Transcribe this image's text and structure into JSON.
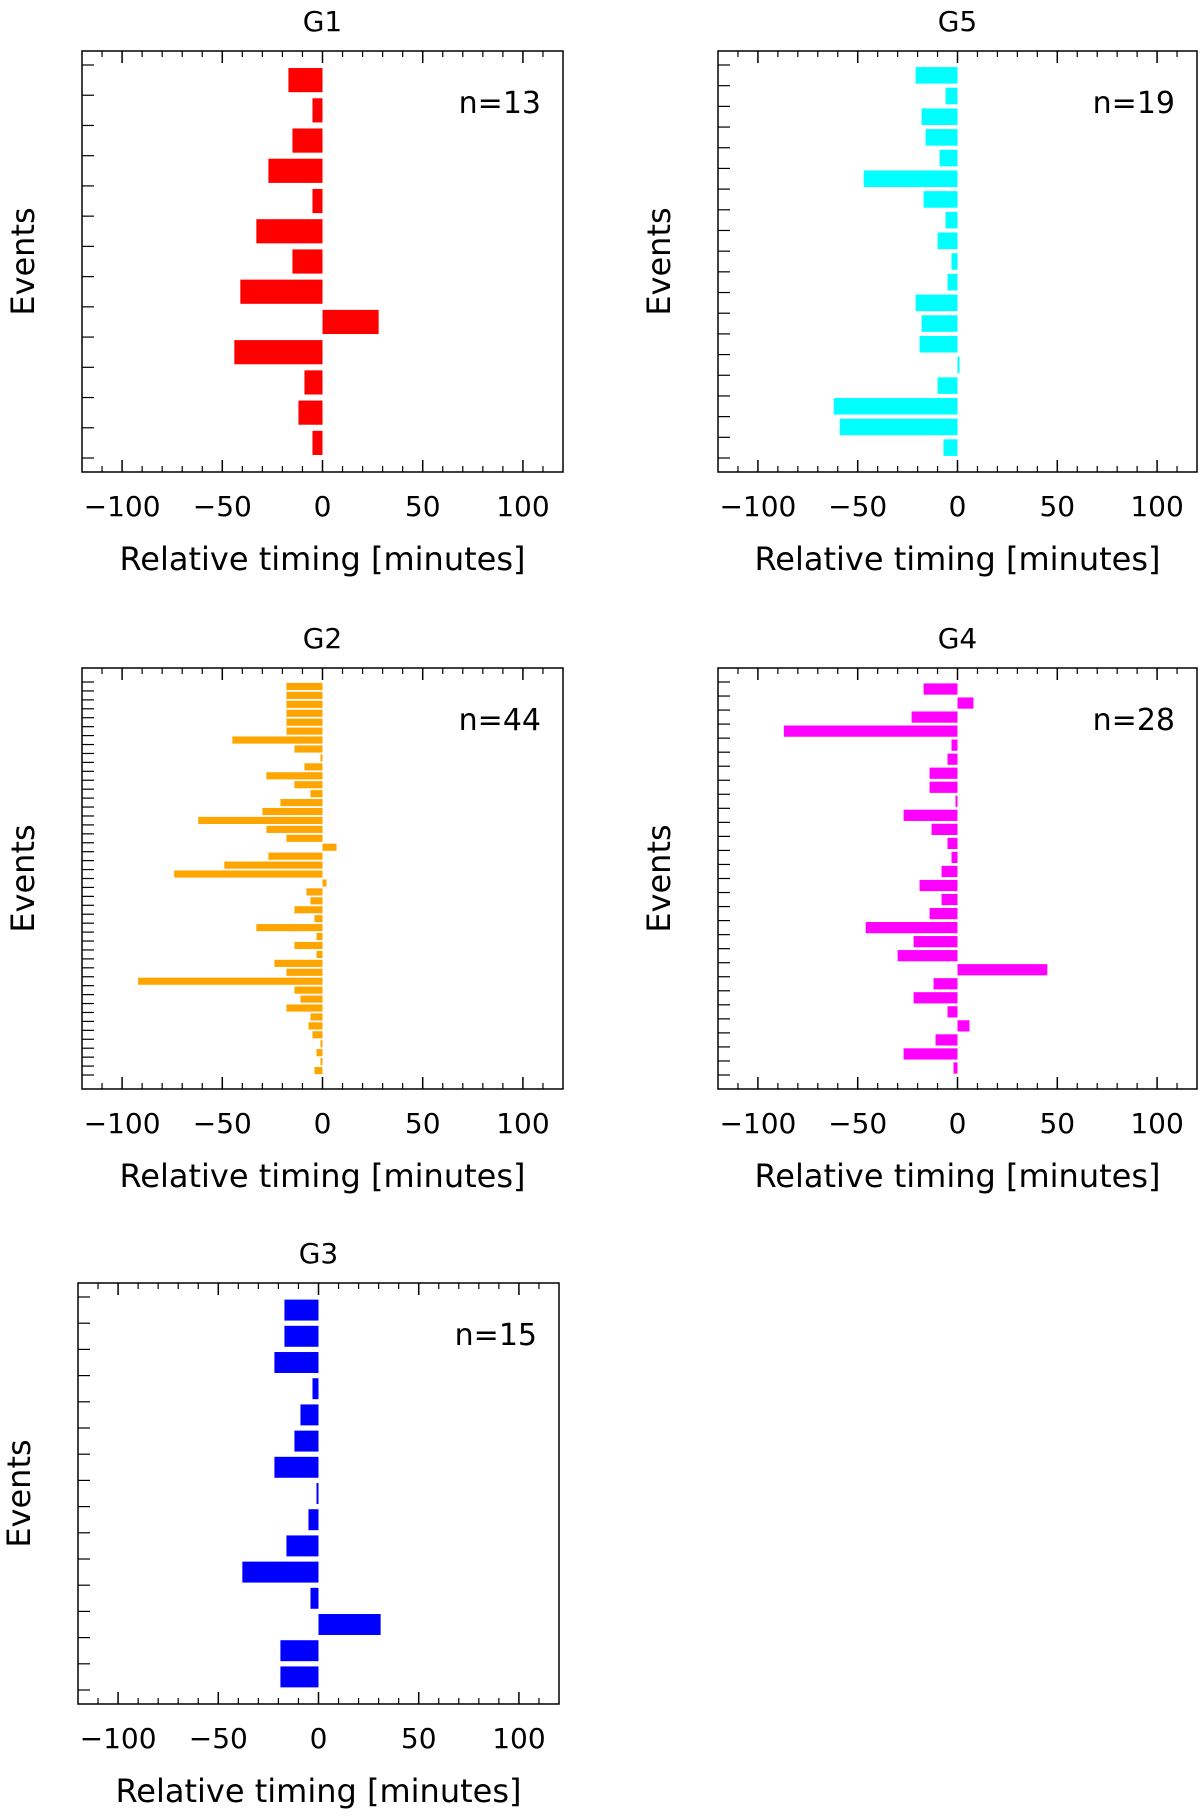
{
  "chart_data": [
    {
      "type": "bar",
      "orientation": "horizontal",
      "title": "G1",
      "annotation": "n=13",
      "xlabel": "Relative timing [minutes]",
      "ylabel": "Events",
      "xlim": [
        -120,
        120
      ],
      "xticks": [
        -100,
        -50,
        0,
        50,
        100
      ],
      "xtick_labels": [
        "−100",
        "−50",
        "0",
        "50",
        "100"
      ],
      "color": "#ff0000",
      "grid": false,
      "values": [
        -17,
        -5,
        -15,
        -27,
        -5,
        -33,
        -15,
        -41,
        28,
        -44,
        -9,
        -12,
        -5
      ]
    },
    {
      "type": "bar",
      "orientation": "horizontal",
      "title": "G5",
      "annotation": "n=19",
      "xlabel": "Relative timing [minutes]",
      "ylabel": "Events",
      "xlim": [
        -120,
        120
      ],
      "xticks": [
        -100,
        -50,
        0,
        50,
        100
      ],
      "xtick_labels": [
        "−100",
        "−50",
        "0",
        "50",
        "100"
      ],
      "color": "#00ffff",
      "grid": false,
      "values": [
        -21,
        -6,
        -18,
        -16,
        -9,
        -47,
        -17,
        -6,
        -10,
        -3,
        -5,
        -21,
        -18,
        -19,
        1,
        -10,
        -62,
        -59,
        -7
      ]
    },
    {
      "type": "bar",
      "orientation": "horizontal",
      "title": "G2",
      "annotation": "n=44",
      "xlabel": "Relative timing [minutes]",
      "ylabel": "Events",
      "xlim": [
        -120,
        120
      ],
      "xticks": [
        -100,
        -50,
        0,
        50,
        100
      ],
      "xtick_labels": [
        "−100",
        "−50",
        "0",
        "50",
        "100"
      ],
      "color": "#ffa500",
      "grid": false,
      "values": [
        -18,
        -18,
        -18,
        -18,
        -18,
        -18,
        -45,
        -14,
        -1,
        -9,
        -28,
        -14,
        -6,
        -21,
        -30,
        -62,
        -28,
        -18,
        7,
        -27,
        -49,
        -74,
        2,
        -8,
        -6,
        -14,
        -4,
        -33,
        -3,
        -14,
        -3,
        -24,
        -18,
        -92,
        -14,
        -11,
        -18,
        -6,
        -7,
        -5,
        -1,
        -3,
        -1,
        -4
      ]
    },
    {
      "type": "bar",
      "orientation": "horizontal",
      "title": "G4",
      "annotation": "n=28",
      "xlabel": "Relative timing [minutes]",
      "ylabel": "Events",
      "xlim": [
        -120,
        120
      ],
      "xticks": [
        -100,
        -50,
        0,
        50,
        100
      ],
      "xtick_labels": [
        "−100",
        "−50",
        "0",
        "50",
        "100"
      ],
      "color": "#ff00ff",
      "grid": false,
      "values": [
        -17,
        8,
        -23,
        -87,
        -3,
        -5,
        -14,
        -14,
        -1,
        -27,
        -13,
        -5,
        -3,
        -8,
        -19,
        -8,
        -14,
        -46,
        -22,
        -30,
        45,
        -12,
        -22,
        -5,
        6,
        -11,
        -27,
        -2
      ]
    },
    {
      "type": "bar",
      "orientation": "horizontal",
      "title": "G3",
      "annotation": "n=15",
      "xlabel": "Relative timing [minutes]",
      "ylabel": "Events",
      "xlim": [
        -120,
        120
      ],
      "xticks": [
        -100,
        -50,
        0,
        50,
        100
      ],
      "xtick_labels": [
        "−100",
        "−50",
        "0",
        "50",
        "100"
      ],
      "color": "#0000ff",
      "grid": false,
      "values": [
        -17,
        -17,
        -22,
        -3,
        -9,
        -12,
        -22,
        -1,
        -5,
        -16,
        -38,
        -4,
        31,
        -19,
        -19
      ]
    }
  ]
}
